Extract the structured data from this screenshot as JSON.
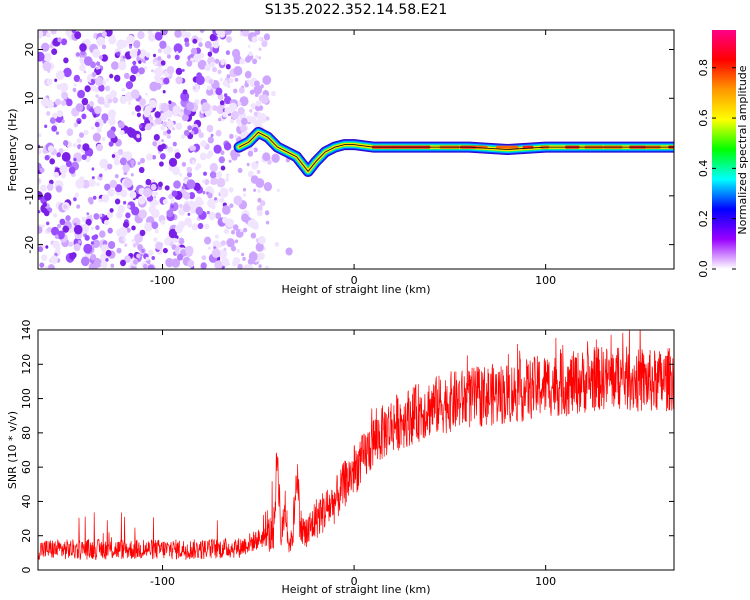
{
  "figure": {
    "title": "S135.2022.352.14.58.E21"
  },
  "chart_data": [
    {
      "type": "heatmap",
      "title": "S135.2022.352.14.58.E21",
      "xlabel": "Height of straight line (km)",
      "ylabel": "Frequency (Hz)",
      "xlim": [
        -165,
        167
      ],
      "ylim": [
        -25,
        24
      ],
      "x_ticks": [
        -100,
        0,
        100
      ],
      "x_tick_labels": [
        "-100",
        "0",
        "100"
      ],
      "y_ticks": [
        -20,
        -10,
        0,
        10,
        20
      ],
      "y_tick_labels": [
        "-20",
        "-10",
        "0",
        "10",
        "20"
      ],
      "colorbar": {
        "label": "Normalized spectral amplitude",
        "range": [
          0,
          0.95
        ],
        "ticks": [
          0,
          0.2,
          0.4,
          0.6,
          0.8
        ],
        "tick_labels": [
          "0.0",
          "0.2",
          "0.4",
          "0.6",
          "0.8"
        ],
        "colors": [
          "#ffffff",
          "#9900ff",
          "#0000ff",
          "#00ffff",
          "#00ff00",
          "#ffff00",
          "#ff9900",
          "#ff0000",
          "#ff0088"
        ]
      },
      "signal_ridge": {
        "x": [
          -60,
          -55,
          -50,
          -45,
          -40,
          -35,
          -30,
          -26,
          -24,
          -20,
          -15,
          -10,
          -5,
          0,
          10,
          20,
          40,
          60,
          80,
          100,
          120,
          140,
          160,
          167
        ],
        "frequency": [
          0,
          1,
          3,
          2,
          0,
          -1,
          -2,
          -4,
          -5,
          -3,
          -1,
          0,
          0.5,
          0.5,
          0,
          0,
          0,
          0,
          -0.5,
          0,
          0,
          0,
          0,
          0
        ]
      },
      "noise_region": {
        "x_from": -165,
        "x_to": -45
      },
      "grid": false
    },
    {
      "type": "line",
      "xlabel": "Height of straight line (km)",
      "ylabel": "SNR (10 * v/v)",
      "xlim": [
        -165,
        167
      ],
      "ylim": [
        0,
        140
      ],
      "x_ticks": [
        -100,
        0,
        100
      ],
      "x_tick_labels": [
        "-100",
        "0",
        "100"
      ],
      "y_ticks": [
        0,
        20,
        40,
        60,
        80,
        100,
        120,
        140
      ],
      "y_tick_labels": [
        "0",
        "20",
        "40",
        "60",
        "80",
        "100",
        "120",
        "140"
      ],
      "color": "#ff0000",
      "series": [
        {
          "x": [
            -165,
            -140,
            -120,
            -100,
            -80,
            -60,
            -50,
            -45,
            -42,
            -40,
            -38,
            -36,
            -34,
            -32,
            -30,
            -28,
            -25,
            -20,
            -15,
            -10,
            -5,
            0,
            5,
            10,
            15,
            20,
            30,
            40,
            50,
            60,
            70,
            80,
            90,
            100,
            110,
            120,
            130,
            140,
            150,
            160,
            167
          ],
          "values": [
            12,
            12,
            12,
            12,
            12,
            13,
            18,
            20,
            22,
            70,
            15,
            40,
            14,
            20,
            60,
            25,
            20,
            30,
            35,
            40,
            50,
            58,
            65,
            75,
            80,
            85,
            90,
            95,
            98,
            100,
            102,
            103,
            105,
            108,
            108,
            110,
            112,
            112,
            110,
            110,
            112
          ]
        }
      ],
      "grid": false
    }
  ]
}
